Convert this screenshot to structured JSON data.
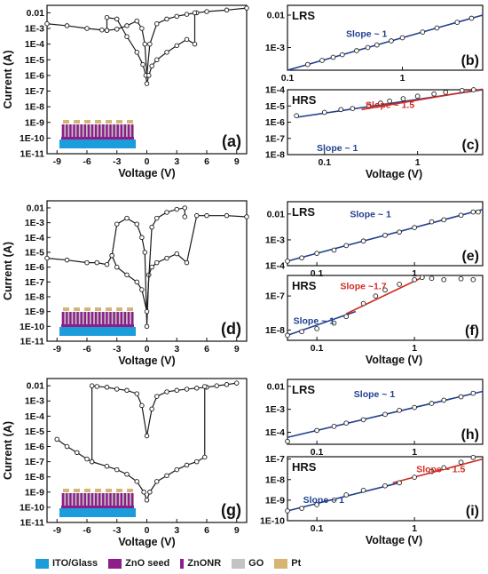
{
  "legend": {
    "items": [
      {
        "label": "ITO/Glass",
        "color": "#1b9ddb"
      },
      {
        "label": "ZnO seed",
        "color": "#8e1d8a"
      },
      {
        "label": "ZnONR",
        "color": "#8e1d8a"
      },
      {
        "label": "GO",
        "color": "#c3c3c3"
      },
      {
        "label": "Pt",
        "color": "#d8b474"
      }
    ]
  },
  "colors": {
    "fit_blue": "#1f3f8f",
    "fit_red": "#d12b1f",
    "curve": "#1a1a1a"
  },
  "chart_data": [
    {
      "id": "a",
      "type": "line",
      "panel_label": "(a)",
      "xlabel": "Voltage (V)",
      "ylabel": "Current (A)",
      "xlim": [
        -10,
        10
      ],
      "xticks": [
        -9,
        -6,
        -3,
        0,
        3,
        6,
        9
      ],
      "y_scale": "log",
      "ylim": [
        1e-11,
        0.03
      ],
      "yticks": [
        {
          "v": 0.01,
          "label": "0.01"
        },
        {
          "v": 0.001,
          "label": "1E-3"
        },
        {
          "v": 0.0001,
          "label": "1E-4"
        },
        {
          "v": 1e-05,
          "label": "1E-5"
        },
        {
          "v": 1e-06,
          "label": "1E-6"
        },
        {
          "v": 1e-07,
          "label": "1E-7"
        },
        {
          "v": 1e-08,
          "label": "1E-8"
        },
        {
          "v": 1e-09,
          "label": "1E-9"
        },
        {
          "v": 1e-10,
          "label": "1E-10"
        },
        {
          "v": 1e-11,
          "label": "1E-11"
        }
      ],
      "series": [
        {
          "x": [
            -10,
            -8,
            -6,
            -4.5,
            -4,
            -3,
            -2,
            -1,
            -0.5,
            -0.2,
            0,
            0.3,
            1,
            2,
            3,
            4,
            5,
            6,
            8,
            10
          ],
          "y": [
            0.002,
            0.0015,
            0.001,
            0.0008,
            0.00075,
            0.0009,
            0.0015,
            0.003,
            0.001,
            0.0001,
            1e-06,
            0.0001,
            0.002,
            0.004,
            0.006,
            0.008,
            0.01,
            0.012,
            0.015,
            0.02
          ]
        },
        {
          "x": [
            -4,
            -4,
            -3,
            -2,
            -1,
            -0.4,
            -0.1,
            0,
            0.2,
            0.5,
            1,
            2,
            3,
            4,
            4.8,
            4.8
          ],
          "y": [
            0.00075,
            0.005,
            0.004,
            0.0003,
            3e-05,
            5e-06,
            1e-06,
            3e-07,
            1e-06,
            4e-06,
            1e-05,
            3e-05,
            8e-05,
            0.0002,
            0.0001,
            0.01
          ]
        }
      ]
    },
    {
      "id": "d",
      "type": "line",
      "panel_label": "(d)",
      "xlabel": "Voltage (V)",
      "ylabel": "Current (A)",
      "xlim": [
        -10,
        10
      ],
      "xticks": [
        -9,
        -6,
        -3,
        0,
        3,
        6,
        9
      ],
      "y_scale": "log",
      "ylim": [
        1e-11,
        0.03
      ],
      "yticks": [
        {
          "v": 0.01,
          "label": "0.01"
        },
        {
          "v": 0.001,
          "label": "1E-3"
        },
        {
          "v": 0.0001,
          "label": "1E-4"
        },
        {
          "v": 1e-05,
          "label": "1E-5"
        },
        {
          "v": 1e-06,
          "label": "1E-6"
        },
        {
          "v": 1e-07,
          "label": "1E-7"
        },
        {
          "v": 1e-08,
          "label": "1E-8"
        },
        {
          "v": 1e-09,
          "label": "1E-9"
        },
        {
          "v": 1e-10,
          "label": "1E-10"
        },
        {
          "v": 1e-11,
          "label": "1E-11"
        }
      ],
      "series": [
        {
          "x": [
            -10,
            -8,
            -6,
            -5,
            -4,
            -3.5,
            -3,
            -2,
            -1,
            -0.5,
            -0.2,
            0,
            0.2,
            0.5,
            1,
            2,
            3,
            4,
            5,
            6,
            8,
            10
          ],
          "y": [
            4e-06,
            3e-06,
            2e-06,
            2e-06,
            1.5e-06,
            6e-06,
            0.0008,
            0.002,
            0.0008,
            0.0001,
            1e-05,
            1e-10,
            3e-07,
            1e-06,
            2e-06,
            4e-06,
            8e-06,
            2e-06,
            0.003,
            0.003,
            0.003,
            0.0025
          ]
        },
        {
          "x": [
            -3.5,
            -3,
            -2,
            -1,
            -0.5,
            0,
            0.5,
            1,
            2,
            3,
            3.8,
            3.8
          ],
          "y": [
            6e-06,
            1e-06,
            3e-07,
            1e-07,
            3e-08,
            1e-09,
            0.0005,
            0.002,
            0.005,
            0.008,
            0.01,
            0.0025
          ]
        }
      ]
    },
    {
      "id": "g",
      "type": "line",
      "panel_label": "(g)",
      "xlabel": "Voltage (V)",
      "ylabel": "Current (A)",
      "xlim": [
        -10,
        10
      ],
      "xticks": [
        -9,
        -6,
        -3,
        0,
        3,
        6,
        9
      ],
      "y_scale": "log",
      "ylim": [
        1e-11,
        0.03
      ],
      "yticks": [
        {
          "v": 0.01,
          "label": "0.01"
        },
        {
          "v": 0.001,
          "label": "1E-3"
        },
        {
          "v": 0.0001,
          "label": "1E-4"
        },
        {
          "v": 1e-05,
          "label": "1E-5"
        },
        {
          "v": 1e-06,
          "label": "1E-6"
        },
        {
          "v": 1e-07,
          "label": "1E-7"
        },
        {
          "v": 1e-08,
          "label": "1E-8"
        },
        {
          "v": 1e-09,
          "label": "1E-9"
        },
        {
          "v": 1e-10,
          "label": "1E-10"
        },
        {
          "v": 1e-11,
          "label": "1E-11"
        }
      ],
      "series": [
        {
          "x": [
            -9,
            -8,
            -7,
            -6,
            -5.5,
            -5.5,
            -5,
            -4,
            -3,
            -2,
            -1,
            -0.5,
            0,
            0.5,
            1,
            2,
            3,
            4,
            5,
            6,
            7,
            8,
            9
          ],
          "y": [
            3e-06,
            1e-06,
            4e-07,
            1.5e-07,
            1e-07,
            0.01,
            0.009,
            0.008,
            0.006,
            0.005,
            0.003,
            0.0005,
            5e-06,
            0.0003,
            0.002,
            0.004,
            0.005,
            0.006,
            0.007,
            0.008,
            0.01,
            0.012,
            0.015
          ]
        },
        {
          "x": [
            -5.5,
            -4,
            -3,
            -2,
            -1,
            -0.3,
            0,
            0.3,
            1,
            2,
            3,
            4,
            5,
            5.8,
            5.8
          ],
          "y": [
            1e-07,
            5e-08,
            3e-08,
            1.5e-08,
            5e-09,
            1e-09,
            3e-10,
            1e-09,
            5e-09,
            1.2e-08,
            3e-08,
            6e-08,
            1e-07,
            2e-07,
            0.009
          ]
        }
      ]
    },
    {
      "id": "b",
      "type": "scatter",
      "panel_label": "(b)",
      "state_label": "LRS",
      "xlabel": "",
      "x_scale": "log",
      "y_scale": "log",
      "xlim": [
        0.1,
        5
      ],
      "ylim": [
        0.0002,
        0.02
      ],
      "xticks": [
        {
          "v": 0.1,
          "label": "0.1"
        },
        {
          "v": 1,
          "label": "1"
        }
      ],
      "yticks": [
        {
          "v": 0.01,
          "label": "0.01"
        },
        {
          "v": 0.001,
          "label": "1E-3"
        }
      ],
      "fits": [
        {
          "label": "Slope ~ 1",
          "color": "#1f3f8f",
          "x": [
            0.1,
            5
          ],
          "y": [
            0.0002,
            0.01
          ]
        }
      ],
      "points": {
        "x": [
          0.15,
          0.2,
          0.25,
          0.3,
          0.4,
          0.5,
          0.6,
          0.8,
          1,
          1.5,
          2,
          3,
          4
        ],
        "y": [
          0.0003,
          0.0004,
          0.0005,
          0.0006,
          0.0008,
          0.001,
          0.0012,
          0.0016,
          0.002,
          0.003,
          0.004,
          0.006,
          0.008
        ]
      }
    },
    {
      "id": "c",
      "type": "scatter",
      "panel_label": "(c)",
      "state_label": "HRS",
      "xlabel": "Voltage (V)",
      "x_scale": "log",
      "y_scale": "log",
      "xlim": [
        0.04,
        5
      ],
      "ylim": [
        1e-08,
        0.0001
      ],
      "xticks": [
        {
          "v": 0.1,
          "label": "0.1"
        },
        {
          "v": 1,
          "label": "1"
        }
      ],
      "yticks": [
        {
          "v": 0.0001,
          "label": "1E-4"
        },
        {
          "v": 1e-05,
          "label": "1E-5"
        },
        {
          "v": 1e-06,
          "label": "1E-6"
        },
        {
          "v": 1e-07,
          "label": "1E-7"
        },
        {
          "v": 1e-08,
          "label": "1E-8"
        }
      ],
      "fits": [
        {
          "label": "Slope ~ 1",
          "color": "#1f3f8f",
          "x": [
            0.05,
            5
          ],
          "y": [
            2e-06,
            0.0001
          ]
        },
        {
          "label": "Slope ~ 1.5",
          "color": "#d12b1f",
          "x": [
            0.25,
            5
          ],
          "y": [
            6e-06,
            0.00011
          ]
        }
      ],
      "points": {
        "x": [
          0.05,
          0.1,
          0.15,
          0.2,
          0.3,
          0.4,
          0.5,
          0.7,
          1,
          1.5,
          2,
          3,
          4
        ],
        "y": [
          2.5e-06,
          4e-06,
          6e-06,
          7e-06,
          1e-05,
          1.5e-05,
          2e-05,
          2.8e-05,
          4e-05,
          5.5e-05,
          7e-05,
          9e-05,
          0.0001
        ]
      }
    },
    {
      "id": "e",
      "type": "scatter",
      "panel_label": "(e)",
      "state_label": "LRS",
      "xlabel": "",
      "x_scale": "log",
      "y_scale": "log",
      "xlim": [
        0.05,
        5
      ],
      "ylim": [
        0.0001,
        0.03
      ],
      "xticks": [
        {
          "v": 0.1,
          "label": "0.1"
        },
        {
          "v": 1,
          "label": "1"
        }
      ],
      "yticks": [
        {
          "v": 0.01,
          "label": "0.01"
        },
        {
          "v": 0.001,
          "label": "1E-3"
        },
        {
          "v": 0.0001,
          "label": "1E-4"
        }
      ],
      "fits": [
        {
          "label": "Slope ~ 1",
          "color": "#1f3f8f",
          "x": [
            0.05,
            5
          ],
          "y": [
            0.00015,
            0.015
          ]
        }
      ],
      "points": {
        "x": [
          0.05,
          0.07,
          0.1,
          0.15,
          0.2,
          0.3,
          0.5,
          0.7,
          1,
          1.5,
          2,
          3,
          4,
          4.5
        ],
        "y": [
          0.00015,
          0.0002,
          0.0003,
          0.0004,
          0.0006,
          0.0009,
          0.0015,
          0.002,
          0.003,
          0.005,
          0.006,
          0.009,
          0.012,
          0.012
        ]
      }
    },
    {
      "id": "f",
      "type": "scatter",
      "panel_label": "(f)",
      "state_label": "HRS",
      "xlabel": "Voltage (V)",
      "x_scale": "log",
      "y_scale": "log",
      "xlim": [
        0.05,
        5
      ],
      "ylim": [
        5e-09,
        4e-07
      ],
      "xticks": [
        {
          "v": 0.1,
          "label": "0.1"
        },
        {
          "v": 1,
          "label": "1"
        }
      ],
      "yticks": [
        {
          "v": 1e-07,
          "label": "1E-7"
        },
        {
          "v": 1e-08,
          "label": "1E-8"
        }
      ],
      "fits": [
        {
          "label": "Slope ~ 1",
          "color": "#1f3f8f",
          "x": [
            0.05,
            0.25
          ],
          "y": [
            7e-09,
            3.5e-08
          ]
        },
        {
          "label": "Slope ~1.7",
          "color": "#d12b1f",
          "x": [
            0.2,
            1.2
          ],
          "y": [
            3e-08,
            3.5e-07
          ]
        }
      ],
      "points": {
        "x": [
          0.05,
          0.07,
          0.1,
          0.15,
          0.2,
          0.3,
          0.4,
          0.5,
          0.7,
          1,
          1.2,
          1.5,
          2,
          3,
          4
        ],
        "y": [
          7e-09,
          9e-09,
          1.1e-08,
          1.6e-08,
          2.5e-08,
          6e-08,
          1e-07,
          1.5e-07,
          2.2e-07,
          3e-07,
          3.5e-07,
          3.3e-07,
          3e-07,
          3.2e-07,
          3e-07
        ]
      }
    },
    {
      "id": "h",
      "type": "scatter",
      "panel_label": "(h)",
      "state_label": "LRS",
      "xlabel": "",
      "x_scale": "log",
      "y_scale": "log",
      "xlim": [
        0.05,
        5
      ],
      "ylim": [
        3e-05,
        0.02
      ],
      "xticks": [
        {
          "v": 0.1,
          "label": "0.1"
        },
        {
          "v": 1,
          "label": "1"
        }
      ],
      "yticks": [
        {
          "v": 0.01,
          "label": "0.01"
        },
        {
          "v": 0.001,
          "label": "1E-3"
        },
        {
          "v": 0.0001,
          "label": "1E-4"
        }
      ],
      "fits": [
        {
          "label": "Slope ~ 1",
          "color": "#1f3f8f",
          "x": [
            0.05,
            5
          ],
          "y": [
            6e-05,
            0.006
          ]
        }
      ],
      "points": {
        "x": [
          0.05,
          0.1,
          0.15,
          0.2,
          0.3,
          0.5,
          0.7,
          1,
          1.5,
          2,
          3,
          4
        ],
        "y": [
          4e-05,
          0.00012,
          0.00018,
          0.00025,
          0.00035,
          0.0006,
          0.0009,
          0.0012,
          0.0018,
          0.0025,
          0.0035,
          0.005
        ]
      }
    },
    {
      "id": "i",
      "type": "scatter",
      "panel_label": "(i)",
      "state_label": "HRS",
      "xlabel": "Voltage (V)",
      "x_scale": "log",
      "y_scale": "log",
      "xlim": [
        0.05,
        5
      ],
      "ylim": [
        1e-10,
        1.3e-07
      ],
      "xticks": [
        {
          "v": 0.1,
          "label": "0.1"
        },
        {
          "v": 1,
          "label": "1"
        }
      ],
      "yticks": [
        {
          "v": 1e-07,
          "label": "1E-7"
        },
        {
          "v": 1e-08,
          "label": "1E-8"
        },
        {
          "v": 1e-09,
          "label": "1E-9"
        },
        {
          "v": 1e-10,
          "label": "1E-10"
        }
      ],
      "fits": [
        {
          "label": "Slope ~ 1",
          "color": "#1f3f8f",
          "x": [
            0.05,
            0.7
          ],
          "y": [
            3e-10,
            7e-09
          ]
        },
        {
          "label": "Slope ~ 1.5",
          "color": "#d12b1f",
          "x": [
            0.6,
            5
          ],
          "y": [
            7e-09,
            1e-07
          ]
        }
      ],
      "points": {
        "x": [
          0.05,
          0.07,
          0.1,
          0.15,
          0.2,
          0.3,
          0.5,
          0.7,
          1,
          1.5,
          2,
          3,
          4
        ],
        "y": [
          3e-10,
          4e-10,
          6e-10,
          1e-09,
          1.8e-09,
          3e-09,
          5e-09,
          7e-09,
          1.3e-08,
          2.5e-08,
          3.8e-08,
          7e-08,
          1.2e-07
        ]
      }
    }
  ]
}
